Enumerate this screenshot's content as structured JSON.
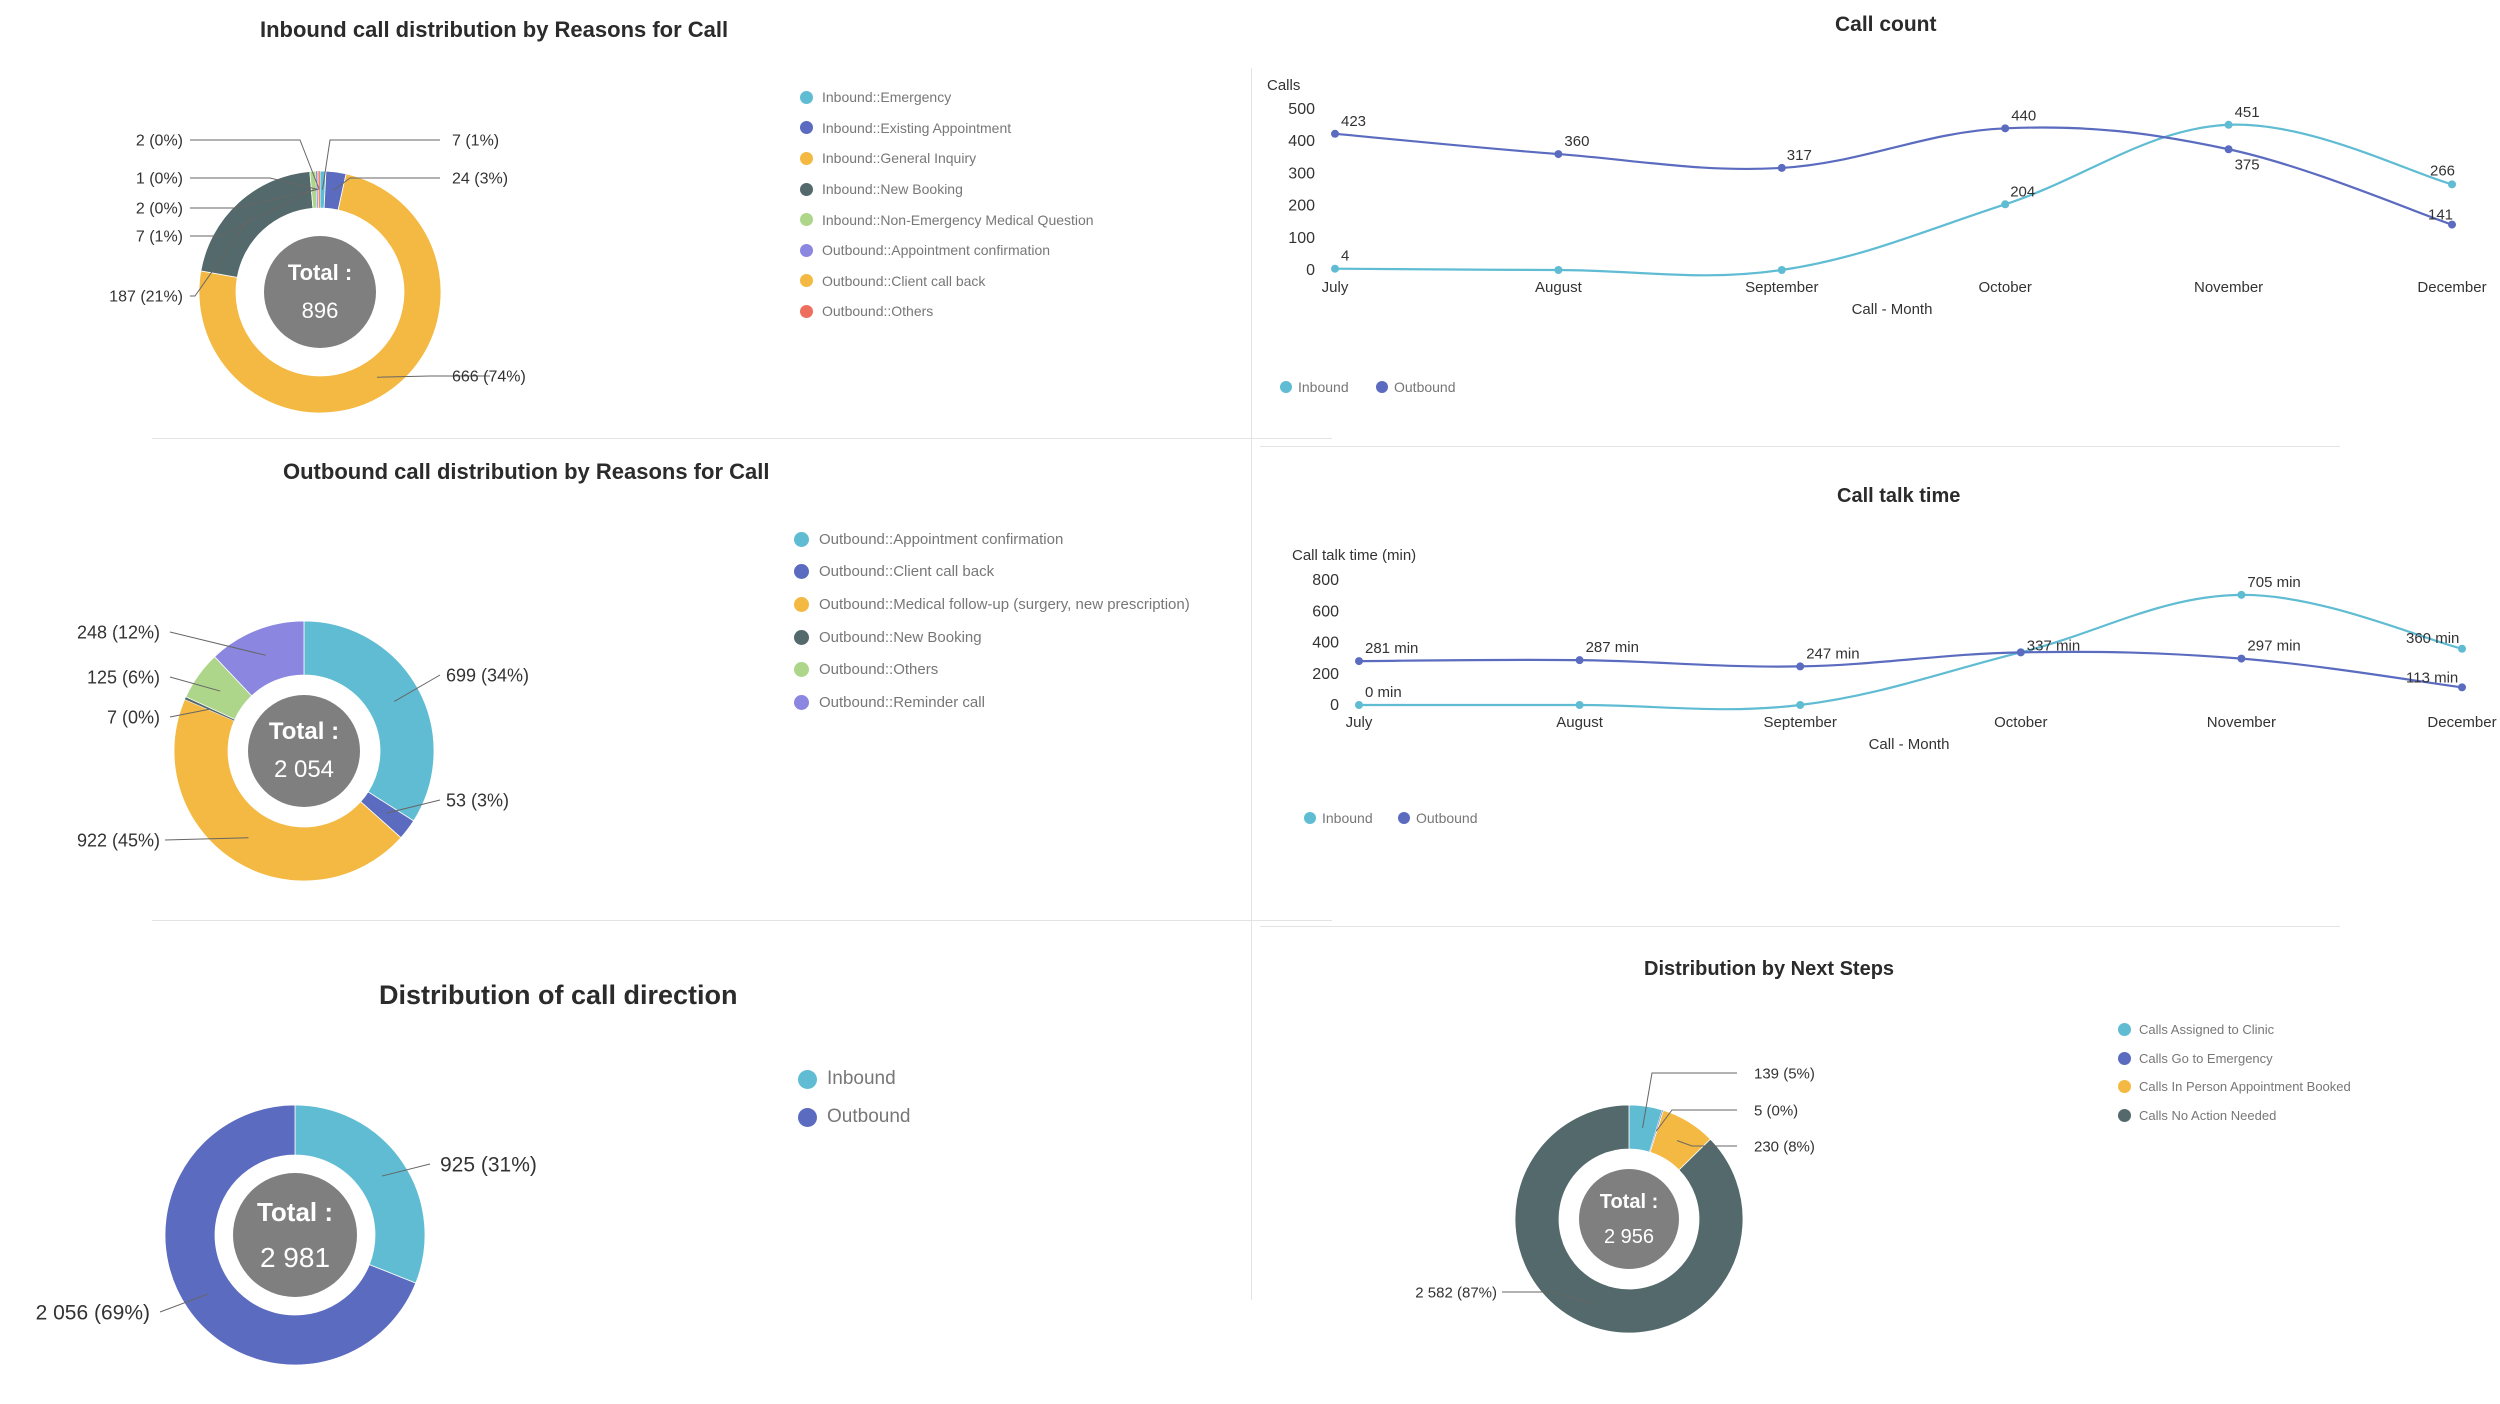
{
  "colors": {
    "cyan": "#5fbcd3",
    "indigo": "#5b6bbf",
    "amber": "#f4b942",
    "slate": "#53696b",
    "lime": "#aed68a",
    "violet": "#8b86e0",
    "coral": "#ee6e5d",
    "center": "#7f7f7f"
  },
  "chart_data": [
    {
      "id": "inbound-reasons",
      "type": "pie",
      "title": "Inbound call distribution by Reasons for Call",
      "total_label": "Total :",
      "total_value": "896",
      "legend": [
        {
          "label": "Inbound::Emergency",
          "color": "#5fbcd3"
        },
        {
          "label": "Inbound::Existing Appointment",
          "color": "#5b6bbf"
        },
        {
          "label": "Inbound::General Inquiry",
          "color": "#f4b942"
        },
        {
          "label": "Inbound::New Booking",
          "color": "#53696b"
        },
        {
          "label": "Inbound::Non-Emergency Medical Question",
          "color": "#aed68a"
        },
        {
          "label": "Outbound::Appointment confirmation",
          "color": "#8b86e0"
        },
        {
          "label": "Outbound::Client call back",
          "color": "#f4b942"
        },
        {
          "label": "Outbound::Others",
          "color": "#ee6e5d"
        }
      ],
      "slices": [
        {
          "name": "Inbound::Emergency",
          "value": 7,
          "label": "7 (1%)",
          "color": "#5fbcd3"
        },
        {
          "name": "Inbound::Existing Appointment",
          "value": 24,
          "label": "24 (3%)",
          "color": "#5b6bbf"
        },
        {
          "name": "Inbound::General Inquiry",
          "value": 666,
          "label": "666 (74%)",
          "color": "#f4b942"
        },
        {
          "name": "Inbound::New Booking",
          "value": 187,
          "label": "187 (21%)",
          "color": "#53696b"
        },
        {
          "name": "Inbound::Non-Emergency Medical Question",
          "value": 7,
          "label": "7 (1%)",
          "color": "#aed68a"
        },
        {
          "name": "Outbound::Appointment confirmation",
          "value": 2,
          "label": "2 (0%)",
          "color": "#8b86e0"
        },
        {
          "name": "Outbound::Client call back",
          "value": 1,
          "label": "1 (0%)",
          "color": "#f4b942"
        },
        {
          "name": "Outbound::Others",
          "value": 2,
          "label": "2 (0%)",
          "color": "#ee6e5d"
        }
      ]
    },
    {
      "id": "outbound-reasons",
      "type": "pie",
      "title": "Outbound call distribution by Reasons for Call",
      "total_label": "Total :",
      "total_value": "2 054",
      "legend": [
        {
          "label": "Outbound::Appointment confirmation",
          "color": "#5fbcd3"
        },
        {
          "label": "Outbound::Client call back",
          "color": "#5b6bbf"
        },
        {
          "label": "Outbound::Medical follow-up (surgery, new prescription)",
          "color": "#f4b942"
        },
        {
          "label": "Outbound::New Booking",
          "color": "#53696b"
        },
        {
          "label": "Outbound::Others",
          "color": "#aed68a"
        },
        {
          "label": "Outbound::Reminder call",
          "color": "#8b86e0"
        }
      ],
      "slices": [
        {
          "name": "Outbound::Appointment confirmation",
          "value": 699,
          "label": "699 (34%)",
          "color": "#5fbcd3"
        },
        {
          "name": "Outbound::Client call back",
          "value": 53,
          "label": "53 (3%)",
          "color": "#5b6bbf"
        },
        {
          "name": "Outbound::Medical follow-up (surgery, new prescription)",
          "value": 922,
          "label": "922 (45%)",
          "color": "#f4b942"
        },
        {
          "name": "Outbound::New Booking",
          "value": 7,
          "label": "7 (0%)",
          "color": "#53696b"
        },
        {
          "name": "Outbound::Others",
          "value": 125,
          "label": "125 (6%)",
          "color": "#aed68a"
        },
        {
          "name": "Outbound::Reminder call",
          "value": 248,
          "label": "248 (12%)",
          "color": "#8b86e0"
        }
      ]
    },
    {
      "id": "call-direction",
      "type": "pie",
      "title": "Distribution of call direction",
      "total_label": "Total :",
      "total_value": "2 981",
      "legend": [
        {
          "label": "Inbound",
          "color": "#5fbcd3"
        },
        {
          "label": "Outbound",
          "color": "#5b6bbf"
        }
      ],
      "slices": [
        {
          "name": "Inbound",
          "value": 925,
          "label": "925 (31%)",
          "color": "#5fbcd3"
        },
        {
          "name": "Outbound",
          "value": 2056,
          "label": "2 056 (69%)",
          "color": "#5b6bbf"
        }
      ]
    },
    {
      "id": "next-steps",
      "type": "pie",
      "title": "Distribution by Next Steps",
      "total_label": "Total :",
      "total_value": "2 956",
      "legend": [
        {
          "label": "Calls Assigned to Clinic",
          "color": "#5fbcd3"
        },
        {
          "label": "Calls Go to Emergency",
          "color": "#5b6bbf"
        },
        {
          "label": "Calls In Person Appointment Booked",
          "color": "#f4b942"
        },
        {
          "label": "Calls No Action Needed",
          "color": "#53696b"
        }
      ],
      "slices": [
        {
          "name": "Calls Assigned to Clinic",
          "value": 139,
          "label": "139 (5%)",
          "color": "#5fbcd3"
        },
        {
          "name": "Calls Go to Emergency",
          "value": 5,
          "label": "5 (0%)",
          "color": "#5b6bbf"
        },
        {
          "name": "Calls In Person Appointment Booked",
          "value": 230,
          "label": "230 (8%)",
          "color": "#f4b942"
        },
        {
          "name": "Calls No Action Needed",
          "value": 2582,
          "label": "2 582 (87%)",
          "color": "#53696b"
        }
      ]
    },
    {
      "id": "call-count",
      "type": "line",
      "title": "Call count",
      "ylabel": "Calls",
      "xlabel": "Call - Month",
      "categories": [
        "July",
        "August",
        "September",
        "October",
        "November",
        "December"
      ],
      "ylim": [
        0,
        500
      ],
      "yticks": [
        0,
        100,
        200,
        300,
        400,
        500
      ],
      "grid": false,
      "series": [
        {
          "name": "Inbound",
          "color": "#5fbcd3",
          "values": [
            4,
            0,
            0,
            204,
            451,
            266
          ],
          "labels": [
            "4",
            "",
            "",
            "204",
            "451",
            "266"
          ]
        },
        {
          "name": "Outbound",
          "color": "#5b6bbf",
          "values": [
            423,
            360,
            317,
            440,
            375,
            141
          ],
          "labels": [
            "423",
            "360",
            "317",
            "440",
            "375",
            "141"
          ]
        }
      ]
    },
    {
      "id": "call-talk-time",
      "type": "line",
      "title": "Call talk time",
      "ylabel": "Call talk time (min)",
      "xlabel": "Call - Month",
      "categories": [
        "July",
        "August",
        "September",
        "October",
        "November",
        "December"
      ],
      "ylim": [
        0,
        800
      ],
      "yticks": [
        0,
        200,
        400,
        600,
        800
      ],
      "grid": false,
      "series": [
        {
          "name": "Inbound",
          "color": "#5fbcd3",
          "values": [
            0,
            0,
            0,
            337,
            705,
            360
          ],
          "labels": [
            "0 min",
            "",
            "",
            "",
            "705 min",
            "360 min"
          ]
        },
        {
          "name": "Outbound",
          "color": "#5b6bbf",
          "values": [
            281,
            287,
            247,
            337,
            297,
            113
          ],
          "labels": [
            "281 min",
            "287 min",
            "247 min",
            "337 min",
            "297 min",
            "113 min"
          ]
        }
      ]
    }
  ]
}
